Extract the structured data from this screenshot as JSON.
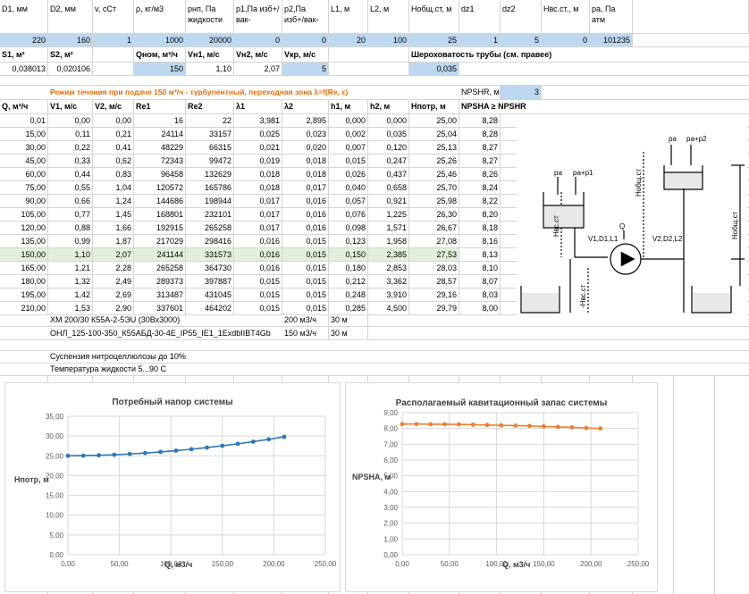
{
  "header_row": [
    "D1, мм",
    "D2, мм",
    "v, сСт",
    "ρ, кг/м3",
    "pнп, Па жидкости",
    "p1,Па изб+/вак-",
    "p2,Па изб+/вак-",
    "L1, м",
    "L2, м",
    "Нобщ.ст, м",
    "dz1",
    "dz2",
    "Нвс.ст., м",
    "pa, Па атм"
  ],
  "header_values": [
    "220",
    "160",
    "1",
    "1000",
    "20000",
    "0",
    "0",
    "20",
    "100",
    "25",
    "1",
    "5",
    "0",
    "101235"
  ],
  "row_s": {
    "s1": "S1, м²",
    "s2": "S2, м²",
    "qnom": "Qном, м³/ч",
    "vn1": "Vн1, м/с",
    "vn2": "Vн2, м/с",
    "vkr": "Vкр, м/с",
    "roughness": "Шероховатость трубы (см. правее)"
  },
  "row_s_values": {
    "s1": "0,038013",
    "s2": "0,020106",
    "qnom": "150",
    "vn1": "1,10",
    "vn2": "2,07",
    "vkr": "5",
    "roughness": "0,035"
  },
  "regime_text": "Режим течения при подаче 150 м³/ч - турбулентный, переходная зона  λ=f(Re, ε)",
  "npshr_label": "NPSHR, м",
  "npshr_value": "3",
  "table_headers": [
    "Q, м³/ч",
    "V1, м/с",
    "V2, м/с",
    "Re1",
    "Re2",
    "λ1",
    "λ2",
    "h1, м",
    "h2, м",
    "Нпотр, м",
    "NPSHA ≥ NPSHR"
  ],
  "table_rows": [
    [
      "0,01",
      "0,00",
      "0,00",
      "16",
      "22",
      "3,981",
      "2,895",
      "0,000",
      "0,000",
      "25,00",
      "8,28"
    ],
    [
      "15,00",
      "0,11",
      "0,21",
      "24114",
      "33157",
      "0,025",
      "0,023",
      "0,002",
      "0,035",
      "25,04",
      "8,28"
    ],
    [
      "30,00",
      "0,22",
      "0,41",
      "48229",
      "66315",
      "0,021",
      "0,020",
      "0,007",
      "0,120",
      "25,13",
      "8,27"
    ],
    [
      "45,00",
      "0,33",
      "0,62",
      "72343",
      "99472",
      "0,019",
      "0,018",
      "0,015",
      "0,247",
      "25,26",
      "8,27"
    ],
    [
      "60,00",
      "0,44",
      "0,83",
      "96458",
      "132629",
      "0,018",
      "0,018",
      "0,026",
      "0,437",
      "25,46",
      "8,26"
    ],
    [
      "75,00",
      "0,55",
      "1,04",
      "120572",
      "165786",
      "0,018",
      "0,017",
      "0,040",
      "0,658",
      "25,70",
      "8,24"
    ],
    [
      "90,00",
      "0,66",
      "1,24",
      "144686",
      "198944",
      "0,017",
      "0,016",
      "0,057",
      "0,921",
      "25,98",
      "8,22"
    ],
    [
      "105,00",
      "0,77",
      "1,45",
      "168801",
      "232101",
      "0,017",
      "0,016",
      "0,076",
      "1,225",
      "26,30",
      "8,20"
    ],
    [
      "120,00",
      "0,88",
      "1,66",
      "192915",
      "265258",
      "0,017",
      "0,016",
      "0,098",
      "1,571",
      "26,67",
      "8,18"
    ],
    [
      "135,00",
      "0,99",
      "1,87",
      "217029",
      "298416",
      "0,016",
      "0,015",
      "0,123",
      "1,958",
      "27,08",
      "8,16"
    ],
    [
      "150,00",
      "1,10",
      "2,07",
      "241144",
      "331573",
      "0,016",
      "0,015",
      "0,150",
      "2,385",
      "27,53",
      "8,13"
    ],
    [
      "165,00",
      "1,21",
      "2,28",
      "265258",
      "364730",
      "0,016",
      "0,015",
      "0,180",
      "2,853",
      "28,03",
      "8,10"
    ],
    [
      "180,00",
      "1,32",
      "2,49",
      "289373",
      "397887",
      "0,015",
      "0,015",
      "0,212",
      "3,362",
      "28,57",
      "8,07"
    ],
    [
      "195,00",
      "1,42",
      "2,69",
      "313487",
      "431045",
      "0,015",
      "0,015",
      "0,248",
      "3,910",
      "29,16",
      "8,03"
    ],
    [
      "210,00",
      "1,53",
      "2,90",
      "337601",
      "464202",
      "0,015",
      "0,015",
      "0,285",
      "4,500",
      "29,79",
      "8,00"
    ]
  ],
  "notes": [
    {
      "text": "ХМ 200/30 К55А-2-5ЭU (30Вх3000)",
      "flow": "200 м3/ч",
      "head": "30 м"
    },
    {
      "text": "ОНЛ_125-100-350_К55АБД-30-4Е_IP55_IE1_1ExdbIIBT4Gb",
      "flow": "150 м3/ч",
      "head": "30 м"
    }
  ],
  "notes2": [
    "Суспензия нитроцеллюлозы до 10%",
    "Температура жидкости   5...90 С"
  ],
  "diagram": {
    "labels": {
      "pa": "pa",
      "pa_p1": "pa+p1",
      "pa_p2": "pa+p2",
      "q": "Q",
      "v1": "V1,D1,L1",
      "v2": "V2,D2,L2",
      "hvs": "Нвс.ст",
      "hvs_neg": "-Нвс.ст",
      "hobsh_left": "Нобщ.ст",
      "hobsh_right": "Нобщ.ст"
    }
  },
  "chart_data": [
    {
      "type": "line",
      "title": "Потребный напор системы",
      "xlabel": "Q, м3/ч",
      "ylabel": "Нпотр, м",
      "xlim": [
        0,
        250
      ],
      "ylim": [
        0,
        35
      ],
      "xticks": [
        "0,00",
        "50,00",
        "100,00",
        "150,00",
        "200,00",
        "250,00"
      ],
      "yticks": [
        "0,00",
        "5,00",
        "10,00",
        "15,00",
        "20,00",
        "25,00",
        "30,00",
        "35,00"
      ],
      "color": "#2e75b6",
      "x": [
        0.01,
        15,
        30,
        45,
        60,
        75,
        90,
        105,
        120,
        135,
        150,
        165,
        180,
        195,
        210
      ],
      "y": [
        25.0,
        25.04,
        25.13,
        25.26,
        25.46,
        25.7,
        25.98,
        26.3,
        26.67,
        27.08,
        27.53,
        28.03,
        28.57,
        29.16,
        29.79
      ]
    },
    {
      "type": "line",
      "title": "Располагаемый кавитационный запас системы",
      "xlabel": "Q, м3/ч",
      "ylabel": "NPSHA, м",
      "xlim": [
        0,
        250
      ],
      "ylim": [
        0,
        9
      ],
      "xticks": [
        "0,00",
        "50,00",
        "100,00",
        "150,00",
        "200,00",
        "250,00"
      ],
      "yticks": [
        "0,00",
        "1,00",
        "2,00",
        "3,00",
        "4,00",
        "5,00",
        "6,00",
        "7,00",
        "8,00",
        "9,00"
      ],
      "color": "#ed7d31",
      "x": [
        0.01,
        15,
        30,
        45,
        60,
        75,
        90,
        105,
        120,
        135,
        150,
        165,
        180,
        195,
        210
      ],
      "y": [
        8.28,
        8.28,
        8.27,
        8.27,
        8.26,
        8.24,
        8.22,
        8.2,
        8.18,
        8.16,
        8.13,
        8.1,
        8.07,
        8.03,
        8.0
      ]
    }
  ]
}
